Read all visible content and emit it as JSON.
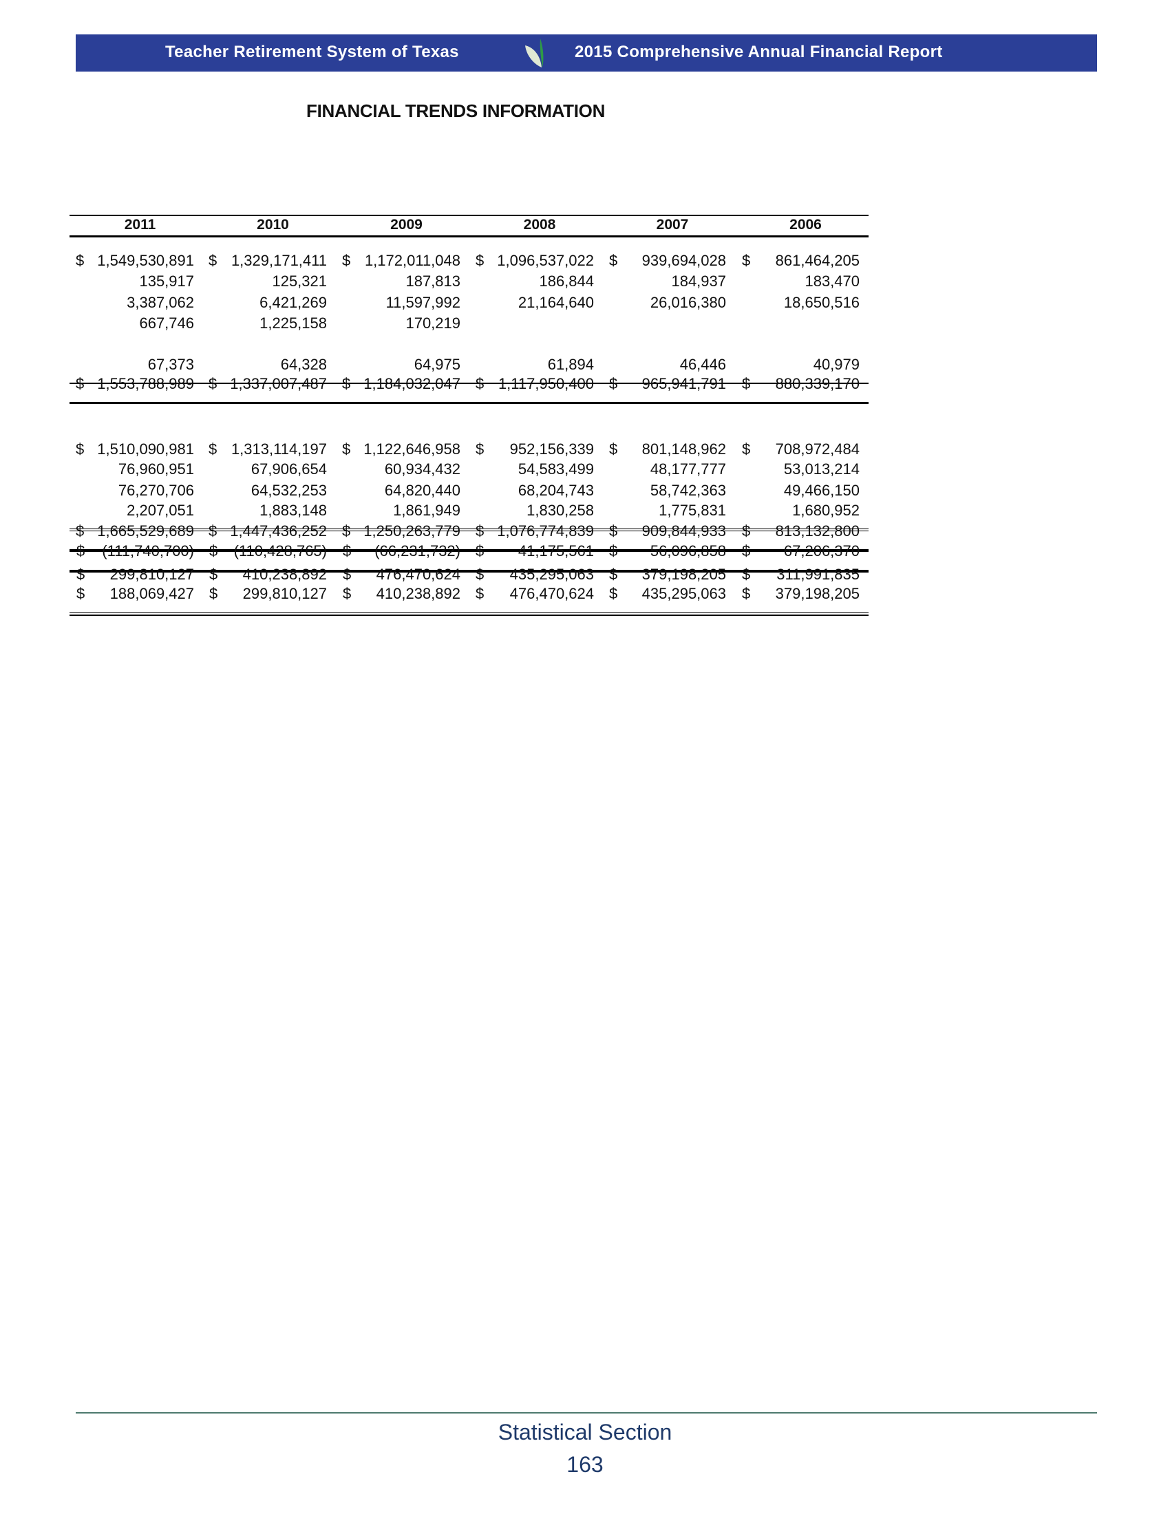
{
  "header": {
    "organization": "Teacher Retirement System of Texas",
    "report_title": "2015 Comprehensive Annual Financial Report",
    "logo_icon": "leaf-icon",
    "color": "#2b3f97"
  },
  "page_title": "FINANCIAL TRENDS INFORMATION",
  "table": {
    "years": [
      "2011",
      "2010",
      "2009",
      "2008",
      "2007",
      "2006"
    ],
    "rows": [
      [
        {
          "cur": "$",
          "val": "1,549,530,891"
        },
        {
          "cur": "$",
          "val": "1,329,171,411"
        },
        {
          "cur": "$",
          "val": "1,172,011,048"
        },
        {
          "cur": "$",
          "val": "1,096,537,022"
        },
        {
          "cur": "$",
          "val": "939,694,028"
        },
        {
          "cur": "$",
          "val": "861,464,205"
        }
      ],
      [
        {
          "cur": "",
          "val": "135,917"
        },
        {
          "cur": "",
          "val": "125,321"
        },
        {
          "cur": "",
          "val": "187,813"
        },
        {
          "cur": "",
          "val": "186,844"
        },
        {
          "cur": "",
          "val": "184,937"
        },
        {
          "cur": "",
          "val": "183,470"
        }
      ],
      [
        {
          "cur": "",
          "val": "3,387,062"
        },
        {
          "cur": "",
          "val": "6,421,269"
        },
        {
          "cur": "",
          "val": "11,597,992"
        },
        {
          "cur": "",
          "val": "21,164,640"
        },
        {
          "cur": "",
          "val": "26,016,380"
        },
        {
          "cur": "",
          "val": "18,650,516"
        }
      ],
      [
        {
          "cur": "",
          "val": "667,746"
        },
        {
          "cur": "",
          "val": "1,225,158"
        },
        {
          "cur": "",
          "val": "170,219"
        },
        {
          "cur": "",
          "val": ""
        },
        {
          "cur": "",
          "val": ""
        },
        {
          "cur": "",
          "val": ""
        }
      ],
      [
        {
          "cur": "",
          "val": "67,373"
        },
        {
          "cur": "",
          "val": "64,328"
        },
        {
          "cur": "",
          "val": "64,975"
        },
        {
          "cur": "",
          "val": "61,894"
        },
        {
          "cur": "",
          "val": "46,446"
        },
        {
          "cur": "",
          "val": "40,979"
        }
      ],
      [
        {
          "cur": "$",
          "val": "1,553,788,989"
        },
        {
          "cur": "$",
          "val": "1,337,007,487"
        },
        {
          "cur": "$",
          "val": "1,184,032,047"
        },
        {
          "cur": "$",
          "val": "1,117,950,400"
        },
        {
          "cur": "$",
          "val": "965,941,791"
        },
        {
          "cur": "$",
          "val": "880,339,170"
        }
      ],
      [
        {
          "cur": "$",
          "val": "1,510,090,981"
        },
        {
          "cur": "$",
          "val": "1,313,114,197"
        },
        {
          "cur": "$",
          "val": "1,122,646,958"
        },
        {
          "cur": "$",
          "val": "952,156,339"
        },
        {
          "cur": "$",
          "val": "801,148,962"
        },
        {
          "cur": "$",
          "val": "708,972,484"
        }
      ],
      [
        {
          "cur": "",
          "val": "76,960,951"
        },
        {
          "cur": "",
          "val": "67,906,654"
        },
        {
          "cur": "",
          "val": "60,934,432"
        },
        {
          "cur": "",
          "val": "54,583,499"
        },
        {
          "cur": "",
          "val": "48,177,777"
        },
        {
          "cur": "",
          "val": "53,013,214"
        }
      ],
      [
        {
          "cur": "",
          "val": "76,270,706"
        },
        {
          "cur": "",
          "val": "64,532,253"
        },
        {
          "cur": "",
          "val": "64,820,440"
        },
        {
          "cur": "",
          "val": "68,204,743"
        },
        {
          "cur": "",
          "val": "58,742,363"
        },
        {
          "cur": "",
          "val": "49,466,150"
        }
      ],
      [
        {
          "cur": "",
          "val": "2,207,051"
        },
        {
          "cur": "",
          "val": "1,883,148"
        },
        {
          "cur": "",
          "val": "1,861,949"
        },
        {
          "cur": "",
          "val": "1,830,258"
        },
        {
          "cur": "",
          "val": "1,775,831"
        },
        {
          "cur": "",
          "val": "1,680,952"
        }
      ],
      [
        {
          "cur": "$",
          "val": "1,665,529,689"
        },
        {
          "cur": "$",
          "val": "1,447,436,252"
        },
        {
          "cur": "$",
          "val": "1,250,263,779"
        },
        {
          "cur": "$",
          "val": "1,076,774,839"
        },
        {
          "cur": "$",
          "val": "909,844,933"
        },
        {
          "cur": "$",
          "val": "813,132,800"
        }
      ],
      [
        {
          "cur": "$",
          "val": "(111,740,700)"
        },
        {
          "cur": "$",
          "val": "(110,428,765)"
        },
        {
          "cur": "$",
          "val": "(66,231,732)"
        },
        {
          "cur": "$",
          "val": "41,175,561"
        },
        {
          "cur": "$",
          "val": "56,096,858"
        },
        {
          "cur": "$",
          "val": "67,206,370"
        }
      ],
      [
        {
          "cur": "$",
          "val": "299,810,127"
        },
        {
          "cur": "$",
          "val": "410,238,892"
        },
        {
          "cur": "$",
          "val": "476,470,624"
        },
        {
          "cur": "$",
          "val": "435,295,063"
        },
        {
          "cur": "$",
          "val": "379,198,205"
        },
        {
          "cur": "$",
          "val": "311,991,835"
        }
      ],
      [
        {
          "cur": "$",
          "val": "188,069,427"
        },
        {
          "cur": "$",
          "val": "299,810,127"
        },
        {
          "cur": "$",
          "val": "410,238,892"
        },
        {
          "cur": "$",
          "val": "476,470,624"
        },
        {
          "cur": "$",
          "val": "435,295,063"
        },
        {
          "cur": "$",
          "val": "379,198,205"
        }
      ]
    ]
  },
  "footer": {
    "section": "Statistical Section",
    "page_number": "163"
  }
}
